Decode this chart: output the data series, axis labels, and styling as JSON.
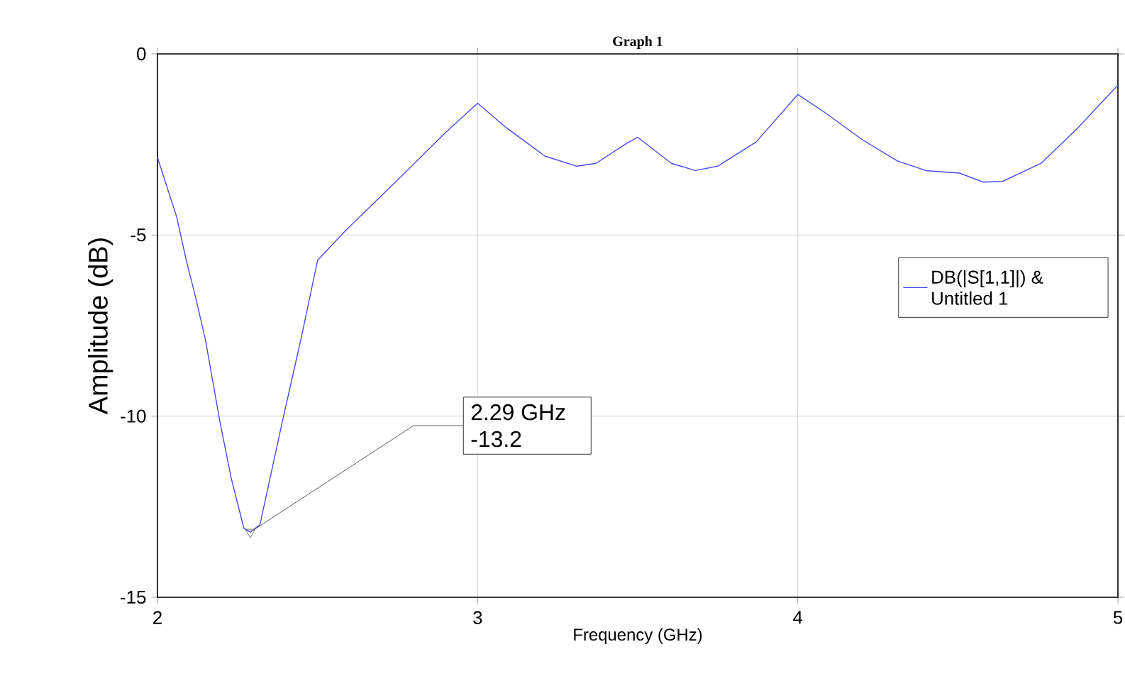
{
  "chart_data": {
    "type": "line",
    "title": "Graph 1",
    "xlabel": "Frequency (GHz)",
    "ylabel": "Amplitude (dB)",
    "xlim": [
      2,
      5
    ],
    "ylim": [
      -15,
      0
    ],
    "xticks": [
      2,
      3,
      4,
      5
    ],
    "yticks": [
      -15,
      -10,
      -5,
      0
    ],
    "grid": true,
    "legend": "right",
    "marker": "none",
    "line_style": "solid",
    "series": [
      {
        "name": "DB(|S[1,1]|) & Untitled 1",
        "color": "#4a4af0",
        "x": [
          2.0,
          2.06,
          2.09,
          2.12,
          2.15,
          2.195,
          2.23,
          2.27,
          2.29,
          2.32,
          2.39,
          2.45,
          2.5,
          2.585,
          2.75,
          2.9,
          3.0,
          3.09,
          3.21,
          3.31,
          3.37,
          3.46,
          3.5,
          3.605,
          3.68,
          3.75,
          3.87,
          4.0,
          4.09,
          4.2,
          4.31,
          4.4,
          4.505,
          4.58,
          4.64,
          4.76,
          4.875,
          5.0
        ],
        "values": [
          -2.86,
          -4.5,
          -5.7,
          -6.75,
          -7.9,
          -10.15,
          -11.7,
          -13.1,
          -13.2,
          -13.0,
          -10.15,
          -7.8,
          -5.7,
          -4.9,
          -3.48,
          -2.17,
          -1.36,
          -2.04,
          -2.82,
          -3.1,
          -3.02,
          -2.5,
          -2.3,
          -3.02,
          -3.22,
          -3.1,
          -2.43,
          -1.12,
          -1.65,
          -2.36,
          -2.95,
          -3.22,
          -3.29,
          -3.54,
          -3.52,
          -3.02,
          -2.04,
          -0.86
        ]
      }
    ],
    "annotations": [
      {
        "text": "2.29 GHz -13.2",
        "x": 2.29,
        "y": -13.2
      }
    ]
  }
}
